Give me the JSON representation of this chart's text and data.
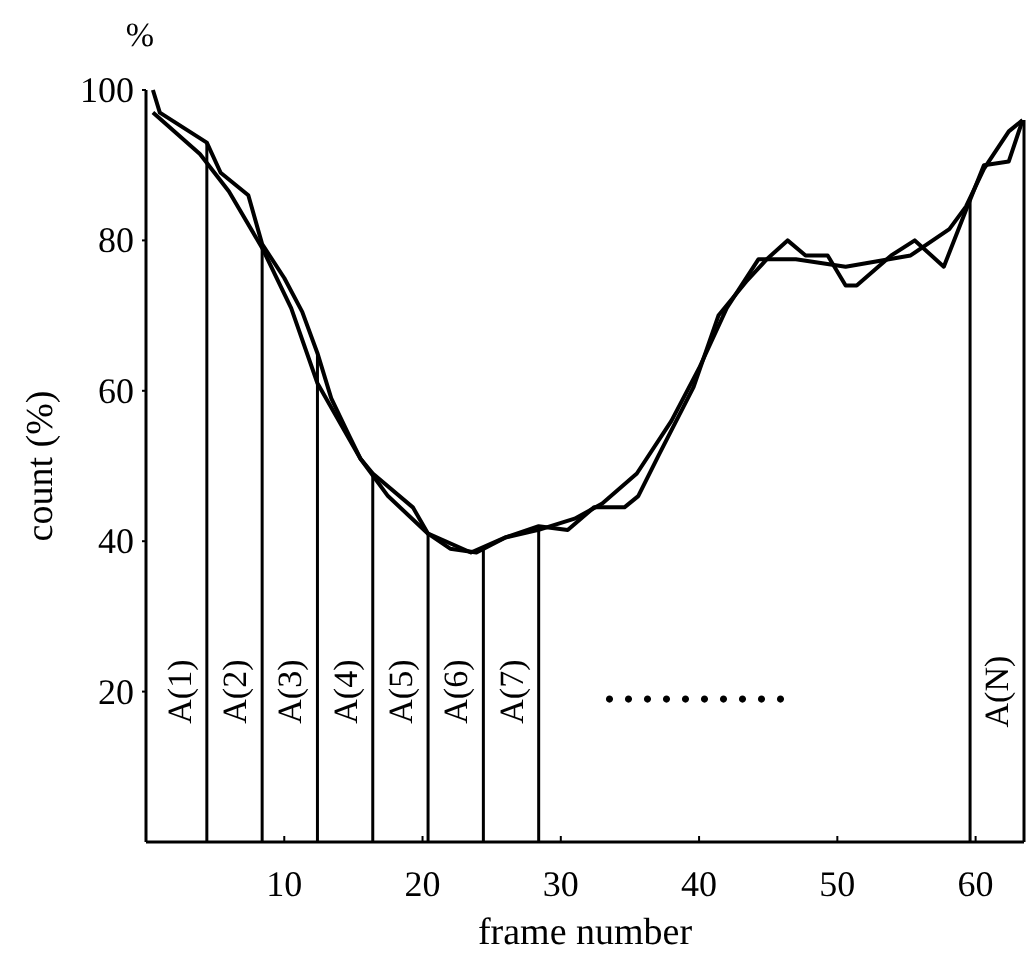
{
  "chart_data": {
    "type": "line",
    "xlabel": "frame number",
    "ylabel": "count (%)",
    "xlim": [
      0,
      63.5
    ],
    "ylim": [
      0,
      100
    ],
    "xticks": [
      10,
      20,
      30,
      40,
      50,
      60
    ],
    "yticks": [
      20,
      40,
      60,
      80,
      100
    ],
    "grid": false,
    "marker": "none",
    "line_style": "solid",
    "annotations": [
      "%",
      ".........."
    ],
    "series": [
      {
        "color": "#000000",
        "x": [
          0.5,
          1,
          4.4,
          5.4,
          7.4,
          8.4,
          10,
          11.3,
          12.4,
          13.4,
          14.7,
          15.5,
          16.4,
          19.3,
          20.4,
          22,
          23.9,
          26,
          28.4,
          30.5,
          32.4,
          34.6,
          35.6,
          37.1,
          39.6,
          41.4,
          43.4,
          44.9,
          46.4,
          47.7,
          49.3,
          50.6,
          51.4,
          53.9,
          55.6,
          57.7,
          59.3,
          60.6,
          62.4,
          63.4
        ],
        "values": [
          100,
          97,
          93,
          89,
          86,
          79.5,
          75,
          70.5,
          65,
          59,
          54,
          51,
          49,
          44.5,
          41,
          39,
          38.5,
          40.5,
          42,
          41.5,
          44.5,
          44.5,
          46,
          51.5,
          60.5,
          70,
          74.5,
          77.5,
          80,
          78,
          78,
          74,
          74,
          78,
          80,
          76.5,
          84,
          90,
          90.5,
          96
        ]
      },
      {
        "color": "#000000",
        "x": [
          0.5,
          3.9,
          6,
          8.4,
          10.5,
          12.4,
          15.5,
          17.5,
          20.4,
          23.5,
          26,
          28.4,
          31,
          33,
          35.5,
          38,
          40,
          42,
          44.3,
          47,
          50.6,
          55.3,
          58.1,
          59.3,
          60.6,
          62.4,
          63.4
        ],
        "values": [
          97,
          91.5,
          86.5,
          79,
          71,
          61,
          51,
          46,
          41,
          38.5,
          40.5,
          41.5,
          43,
          45,
          49,
          56,
          63,
          71,
          77.5,
          77.5,
          76.5,
          78,
          81.5,
          84.5,
          89.5,
          94.5,
          96
        ]
      }
    ],
    "ref_lines": [
      {
        "axis": "x",
        "value": 4.4,
        "label": "A(1)"
      },
      {
        "axis": "x",
        "value": 8.4,
        "label": "A(2)"
      },
      {
        "axis": "x",
        "value": 12.4,
        "label": "A(3)"
      },
      {
        "axis": "x",
        "value": 16.4,
        "label": "A(4)"
      },
      {
        "axis": "x",
        "value": 20.4,
        "label": "A(5)"
      },
      {
        "axis": "x",
        "value": 24.4,
        "label": "A(6)"
      },
      {
        "axis": "x",
        "value": 28.4,
        "label": "A(7)"
      },
      {
        "axis": "x",
        "value": 59.6
      },
      {
        "axis": "x",
        "value": 63.5,
        "label": "A(N)"
      }
    ]
  }
}
